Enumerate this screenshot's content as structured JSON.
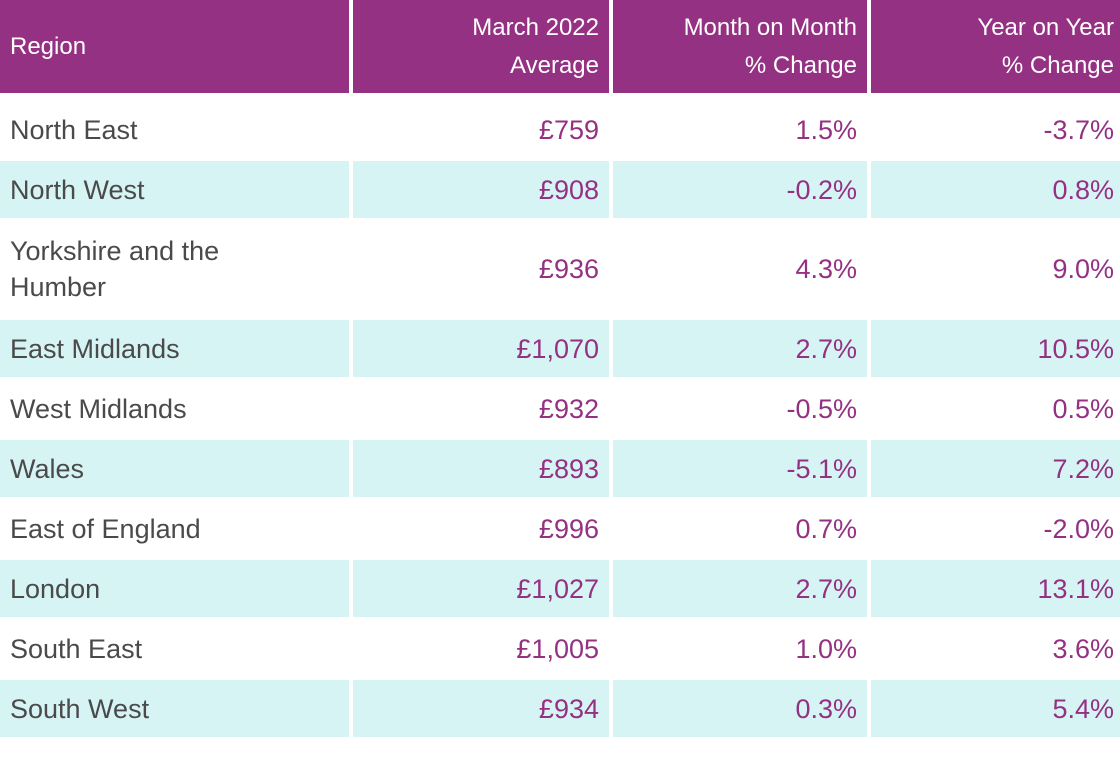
{
  "headers": {
    "region": "Region",
    "average": "March 2022\nAverage",
    "mom": "Month on Month\n% Change",
    "yoy": "Year on Year\n% Change"
  },
  "rows": [
    {
      "region": "North East",
      "average": "£759",
      "mom": "1.5%",
      "yoy": "-3.7%"
    },
    {
      "region": "North West",
      "average": "£908",
      "mom": "-0.2%",
      "yoy": "0.8%"
    },
    {
      "region": "Yorkshire and the Humber",
      "average": "£936",
      "mom": "4.3%",
      "yoy": "9.0%"
    },
    {
      "region": "East Midlands",
      "average": "£1,070",
      "mom": "2.7%",
      "yoy": "10.5%"
    },
    {
      "region": "West Midlands",
      "average": "£932",
      "mom": "-0.5%",
      "yoy": "0.5%"
    },
    {
      "region": "Wales",
      "average": "£893",
      "mom": "-5.1%",
      "yoy": "7.2%"
    },
    {
      "region": "East of England",
      "average": "£996",
      "mom": "0.7%",
      "yoy": "-2.0%"
    },
    {
      "region": "London",
      "average": "£1,027",
      "mom": "2.7%",
      "yoy": "13.1%"
    },
    {
      "region": "South East",
      "average": "£1,005",
      "mom": "1.0%",
      "yoy": "3.6%"
    },
    {
      "region": "South West",
      "average": "£934",
      "mom": "0.3%",
      "yoy": "5.4%"
    }
  ],
  "colors": {
    "header_bg": "#943182",
    "header_text": "#ffffff",
    "stripe_bg": "#d7f4f5",
    "value_text": "#943182",
    "region_text": "#4a4a4a"
  }
}
